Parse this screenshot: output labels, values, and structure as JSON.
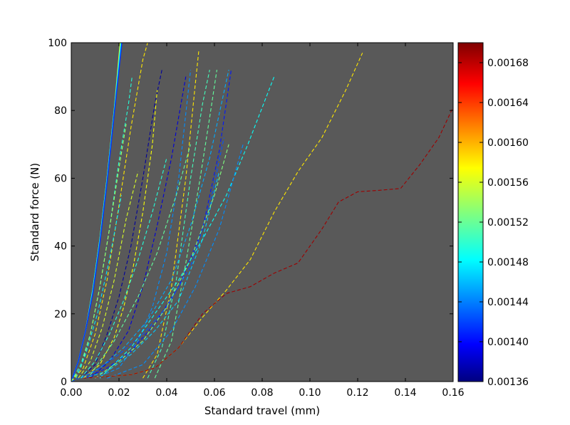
{
  "chart_data": {
    "type": "line",
    "xlabel": "Standard travel (mm)",
    "ylabel": "Standard force (N)",
    "xlim": [
      0,
      0.16
    ],
    "ylim": [
      0,
      100
    ],
    "xticks": [
      "0.00",
      "0.02",
      "0.04",
      "0.06",
      "0.08",
      "0.10",
      "0.12",
      "0.14",
      "0.16"
    ],
    "yticks": [
      "0",
      "20",
      "40",
      "60",
      "80",
      "100"
    ],
    "background": "#595959",
    "colorbar": {
      "colormap": "jet",
      "range": [
        0.00136,
        0.0017
      ],
      "ticks": [
        "0.00136",
        "0.00140",
        "0.00144",
        "0.00148",
        "0.00152",
        "0.00156",
        "0.00160",
        "0.00164",
        "0.00168"
      ]
    },
    "series": [
      {
        "style": "solid",
        "value": 0.00156,
        "x": [
          0,
          0.003,
          0.006,
          0.009,
          0.012,
          0.015,
          0.018,
          0.0205
        ],
        "y": [
          0,
          6,
          15,
          27,
          42,
          60,
          80,
          100
        ]
      },
      {
        "style": "solid",
        "value": 0.00149,
        "x": [
          0,
          0.003,
          0.006,
          0.009,
          0.012,
          0.015,
          0.018,
          0.0208
        ],
        "y": [
          0,
          6,
          15,
          27,
          42,
          60,
          80,
          100
        ]
      },
      {
        "style": "solid",
        "value": 0.00142,
        "x": [
          0,
          0.003,
          0.006,
          0.009,
          0.012,
          0.015,
          0.018,
          0.0212
        ],
        "y": [
          0,
          6,
          15,
          26,
          41,
          59,
          79,
          100
        ]
      },
      {
        "style": "dashed",
        "value": 0.0158,
        "x": [
          0,
          0.005,
          0.01,
          0.015,
          0.02,
          0.025,
          0.03,
          0.032
        ],
        "y": [
          0,
          4,
          14,
          30,
          52,
          75,
          95,
          100
        ]
      },
      {
        "style": "dashed",
        "value": 0.0015,
        "x": [
          0,
          0.004,
          0.008,
          0.012,
          0.016,
          0.02,
          0.024,
          0.0255
        ],
        "y": [
          0,
          5,
          14,
          28,
          45,
          65,
          82,
          90
        ]
      },
      {
        "style": "dashed",
        "value": 0.00154,
        "x": [
          0,
          0.004,
          0.008,
          0.012,
          0.016,
          0.02,
          0.023
        ],
        "y": [
          0,
          4,
          14,
          28,
          45,
          63,
          76
        ]
      },
      {
        "style": "dashed",
        "value": 0.00137,
        "x": [
          0.004,
          0.01,
          0.015,
          0.02,
          0.025,
          0.03,
          0.035,
          0.038
        ],
        "y": [
          1,
          5,
          14,
          25,
          40,
          60,
          82,
          92
        ]
      },
      {
        "style": "dashed",
        "value": 0.00157,
        "x": [
          0.005,
          0.012,
          0.018,
          0.022,
          0.026,
          0.03,
          0.034,
          0.036
        ],
        "y": [
          1,
          5,
          13,
          22,
          34,
          50,
          70,
          86
        ]
      },
      {
        "style": "dashed",
        "value": 0.00145,
        "x": [
          0.01,
          0.02,
          0.028,
          0.034,
          0.04,
          0.045,
          0.05
        ],
        "y": [
          1,
          4,
          12,
          22,
          38,
          60,
          92
        ]
      },
      {
        "style": "dashed",
        "value": 0.00139,
        "x": [
          0.008,
          0.016,
          0.024,
          0.03,
          0.036,
          0.042,
          0.048
        ],
        "y": [
          1,
          6,
          15,
          28,
          46,
          66,
          90
        ]
      },
      {
        "style": "dashed",
        "value": 0.00158,
        "x": [
          0.03,
          0.036,
          0.042,
          0.048,
          0.052,
          0.0535
        ],
        "y": [
          1,
          8,
          28,
          60,
          88,
          98
        ]
      },
      {
        "style": "dashed",
        "value": 0.00151,
        "x": [
          0.032,
          0.038,
          0.044,
          0.05,
          0.055,
          0.058
        ],
        "y": [
          1,
          10,
          30,
          60,
          82,
          92
        ]
      },
      {
        "style": "dashed",
        "value": 0.00152,
        "x": [
          0.035,
          0.042,
          0.048,
          0.054,
          0.058,
          0.061
        ],
        "y": [
          1,
          12,
          35,
          60,
          78,
          92
        ]
      },
      {
        "style": "dashed",
        "value": 0.00146,
        "x": [
          0.004,
          0.012,
          0.022,
          0.032,
          0.042,
          0.05,
          0.058,
          0.066
        ],
        "y": [
          1,
          4,
          10,
          18,
          30,
          46,
          66,
          92
        ]
      },
      {
        "style": "dashed",
        "value": 0.00141,
        "x": [
          0.006,
          0.015,
          0.025,
          0.035,
          0.045,
          0.055,
          0.062,
          0.067
        ],
        "y": [
          1,
          4,
          9,
          17,
          28,
          45,
          68,
          92
        ]
      },
      {
        "style": "dashed",
        "value": 0.00147,
        "x": [
          0.005,
          0.015,
          0.025,
          0.035,
          0.045,
          0.055,
          0.062
        ],
        "y": [
          1,
          3,
          8,
          15,
          24,
          42,
          62
        ]
      },
      {
        "style": "dashed",
        "value": 0.00143,
        "x": [
          0,
          0.01,
          0.02,
          0.03,
          0.04,
          0.05,
          0.058,
          0.064
        ],
        "y": [
          0,
          3,
          8,
          14,
          22,
          34,
          52,
          72
        ]
      },
      {
        "style": "dashed",
        "value": 0.00153,
        "x": [
          0.01,
          0.02,
          0.03,
          0.04,
          0.05,
          0.06,
          0.066
        ],
        "y": [
          1,
          6,
          12,
          22,
          36,
          55,
          70
        ]
      },
      {
        "style": "dashed",
        "value": 0.00149,
        "x": [
          0.012,
          0.025,
          0.035,
          0.045,
          0.055,
          0.065,
          0.074,
          0.085
        ],
        "y": [
          1,
          10,
          20,
          30,
          42,
          55,
          70,
          90
        ]
      },
      {
        "style": "dashed",
        "value": 0.00145,
        "x": [
          0.015,
          0.03,
          0.042,
          0.052,
          0.062,
          0.068,
          0.072
        ],
        "y": [
          1,
          5,
          15,
          28,
          45,
          60,
          70
        ]
      },
      {
        "style": "dashed",
        "value": 0.00152,
        "x": [
          0.008,
          0.018,
          0.028,
          0.036,
          0.044,
          0.05
        ],
        "y": [
          2,
          12,
          25,
          38,
          55,
          70
        ]
      },
      {
        "style": "dashed",
        "value": 0.00156,
        "x": [
          0.003,
          0.008,
          0.013,
          0.018,
          0.023,
          0.028
        ],
        "y": [
          1,
          6,
          16,
          30,
          48,
          62
        ]
      },
      {
        "style": "dashed",
        "value": 0.0015,
        "x": [
          0.004,
          0.01,
          0.016,
          0.022,
          0.028,
          0.034,
          0.04
        ],
        "y": [
          1,
          6,
          14,
          24,
          36,
          50,
          66
        ]
      },
      {
        "style": "dashed",
        "value": 0.00148,
        "x": [
          0.002,
          0.006,
          0.011,
          0.016,
          0.021
        ],
        "y": [
          1,
          8,
          20,
          36,
          55
        ]
      },
      {
        "style": "dashed",
        "value": 0.00158,
        "x": [
          0.005,
          0.015,
          0.025,
          0.035,
          0.045,
          0.055,
          0.065,
          0.075,
          0.085,
          0.095,
          0.105,
          0.115,
          0.122
        ],
        "y": [
          1,
          1.5,
          2,
          4,
          10,
          19,
          27,
          36,
          50,
          62,
          72,
          86,
          97
        ]
      },
      {
        "style": "dashed",
        "value": 0.00169,
        "x": [
          0.005,
          0.015,
          0.025,
          0.035,
          0.045,
          0.055,
          0.065,
          0.075,
          0.085,
          0.095,
          0.105,
          0.112,
          0.12,
          0.13,
          0.138,
          0.146,
          0.154,
          0.16
        ],
        "y": [
          1,
          1.5,
          2,
          4,
          10,
          20,
          26,
          28,
          32,
          35,
          45,
          53,
          56,
          56.5,
          57,
          64,
          72,
          81
        ]
      }
    ]
  }
}
